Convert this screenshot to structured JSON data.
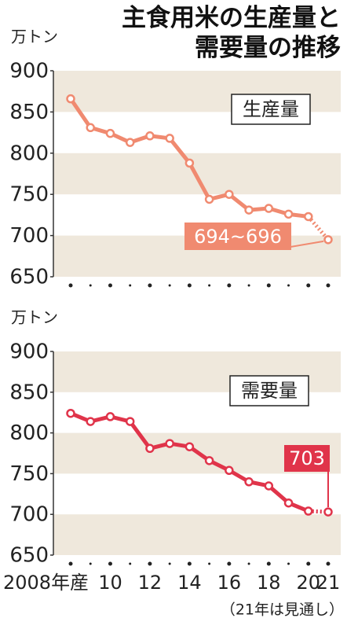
{
  "title": "主食用米の生産量と需要量の推移",
  "note": "（21年は見通し）",
  "chart_data": [
    {
      "type": "line",
      "label": "生産量",
      "unit": "万トン",
      "color": "#f08a70",
      "values": [
        866,
        831,
        824,
        813,
        821,
        818,
        788,
        744,
        750,
        731,
        733,
        726,
        723,
        695
      ],
      "value_labels": [
        null,
        null,
        null,
        null,
        null,
        null,
        null,
        null,
        null,
        null,
        null,
        null,
        null,
        "694~696"
      ],
      "ylim": [
        650,
        900
      ],
      "yticks": [
        650,
        700,
        750,
        800,
        850,
        900
      ],
      "bands": "#efe8dc"
    },
    {
      "type": "line",
      "label": "需要量",
      "unit": "万トン",
      "color": "#e0344a",
      "categories": [
        "2008年産",
        null,
        "10",
        null,
        "12",
        null,
        "14",
        null,
        "16",
        null,
        "18",
        null,
        "20",
        "21"
      ],
      "values": [
        824,
        814,
        820,
        814,
        781,
        787,
        783,
        766,
        754,
        740,
        735,
        714,
        704,
        703
      ],
      "value_labels": [
        null,
        null,
        null,
        null,
        null,
        null,
        null,
        null,
        null,
        null,
        null,
        null,
        null,
        "703"
      ],
      "ylim": [
        650,
        900
      ],
      "yticks": [
        650,
        700,
        750,
        800,
        850,
        900
      ],
      "bands": "#efe8dc"
    }
  ]
}
